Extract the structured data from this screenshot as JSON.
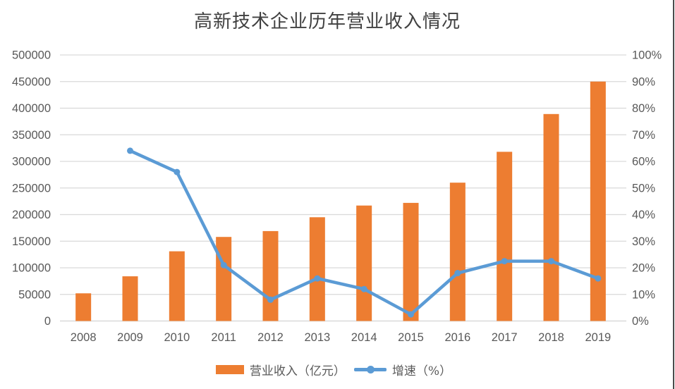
{
  "chart_data": {
    "type": "combo",
    "title": "高新技术企业历年营业收入情况",
    "categories": [
      "2008",
      "2009",
      "2010",
      "2011",
      "2012",
      "2013",
      "2014",
      "2015",
      "2016",
      "2017",
      "2018",
      "2019"
    ],
    "series": [
      {
        "name": "营业收入（亿元）",
        "type": "bar",
        "axis": "left",
        "color": "#ED7D31",
        "values": [
          52000,
          84000,
          131000,
          158000,
          169000,
          195000,
          217000,
          222000,
          260000,
          318000,
          389000,
          450000
        ]
      },
      {
        "name": "增速（%）",
        "type": "line",
        "axis": "right",
        "color": "#5B9BD5",
        "values": [
          null,
          64,
          56,
          21,
          8,
          16,
          12,
          2.5,
          18,
          22.5,
          22.5,
          16
        ]
      }
    ],
    "left_axis": {
      "min": 0,
      "max": 500000,
      "step": 50000,
      "tick_labels": [
        "0",
        "50000",
        "100000",
        "150000",
        "200000",
        "250000",
        "300000",
        "350000",
        "400000",
        "450000",
        "500000"
      ]
    },
    "right_axis": {
      "min": 0,
      "max": 100,
      "step": 10,
      "tick_labels": [
        "0%",
        "10%",
        "20%",
        "30%",
        "40%",
        "50%",
        "60%",
        "70%",
        "80%",
        "90%",
        "100%"
      ]
    },
    "grid": true,
    "grid_color": "#D9D9D9",
    "axis_text_color": "#595959",
    "title_color": "#404040",
    "legend_position": "bottom"
  }
}
